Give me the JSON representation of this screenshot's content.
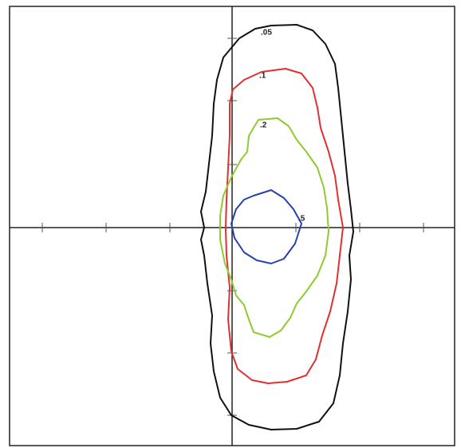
{
  "contours": [
    {
      "label": ".05"
    },
    {
      "label": ".1"
    },
    {
      "label": ".2"
    },
    {
      "label": ".5"
    }
  ]
}
